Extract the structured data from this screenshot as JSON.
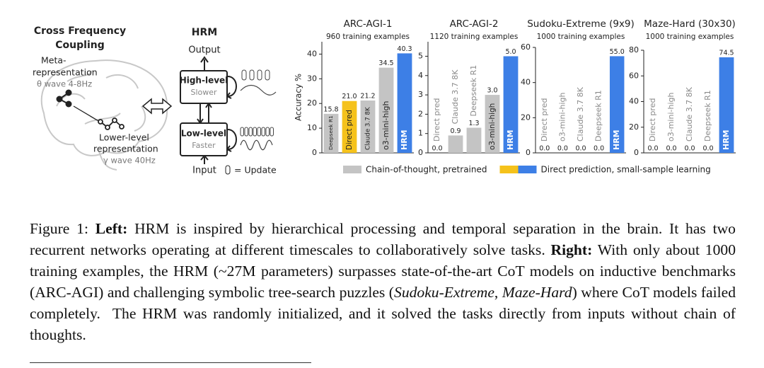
{
  "diagram": {
    "left_title": [
      "Cross Frequency",
      "Coupling"
    ],
    "meta_label": [
      "Meta-",
      "representation"
    ],
    "theta": "θ wave 4-8Hz",
    "lower_label": [
      "Lower-level",
      "representation"
    ],
    "gamma": "γ wave 40Hz",
    "hrm_title": "HRM",
    "output": "Output",
    "high_level": "High-level",
    "slower": "Slower",
    "low_level": "Low-level",
    "faster": "Faster",
    "input": "Input",
    "update": "= Update"
  },
  "chart_data": [
    {
      "type": "bar",
      "title": "ARC-AGI-1",
      "subtitle": "960 training examples",
      "ylabel": "Accuracy %",
      "categories": [
        "Deepseek R1",
        "Direct pred",
        "Claude 3.7 8K",
        "o3-mini-high",
        "HRM"
      ],
      "values": [
        15.8,
        21.0,
        21.2,
        34.5,
        40.3
      ],
      "value_labels": [
        "15.8",
        "21.0",
        "21.2",
        "34.5",
        "40.3"
      ],
      "colors": [
        "#c4c4c4",
        "#f5c21b",
        "#c4c4c4",
        "#c4c4c4",
        "#3d7fe6"
      ],
      "ylim": [
        0,
        45
      ],
      "yticks": [
        0,
        10,
        20,
        30,
        40
      ]
    },
    {
      "type": "bar",
      "title": "ARC-AGI-2",
      "subtitle": "1120 training examples",
      "categories": [
        "Direct pred",
        "Claude 3.7 8K",
        "Deepseek R1",
        "o3-mini-high",
        "HRM"
      ],
      "values": [
        0.0,
        0.9,
        1.3,
        3.0,
        5.0
      ],
      "value_labels": [
        "0.0",
        "0.9",
        "1.3",
        "3.0",
        "5.0"
      ],
      "colors": [
        "#f5c21b",
        "#c4c4c4",
        "#c4c4c4",
        "#c4c4c4",
        "#3d7fe6"
      ],
      "ylim": [
        0,
        5.75
      ],
      "yticks": [
        0,
        1,
        2,
        3,
        4,
        5
      ]
    },
    {
      "type": "bar",
      "title": "Sudoku-Extreme (9x9)",
      "subtitle": "1000 training examples",
      "categories": [
        "Direct pred",
        "o3-mini-high",
        "Claude 3.7 8K",
        "Deepseek R1",
        "HRM"
      ],
      "values": [
        0.0,
        0.0,
        0.0,
        0.0,
        55.0
      ],
      "value_labels": [
        "0.0",
        "0.0",
        "0.0",
        "0.0",
        "55.0"
      ],
      "colors": [
        "#f5c21b",
        "#c4c4c4",
        "#c4c4c4",
        "#c4c4c4",
        "#3d7fe6"
      ],
      "ylim": [
        0,
        60
      ],
      "yticks": [
        0,
        20,
        40,
        60
      ]
    },
    {
      "type": "bar",
      "title": "Maze-Hard (30x30)",
      "subtitle": "1000 training examples",
      "categories": [
        "Direct pred",
        "o3-mini-high",
        "Claude 3.7 8K",
        "Deepseek R1",
        "HRM"
      ],
      "values": [
        0.0,
        0.0,
        0.0,
        0.0,
        74.5
      ],
      "value_labels": [
        "0.0",
        "0.0",
        "0.0",
        "0.0",
        "74.5"
      ],
      "colors": [
        "#f5c21b",
        "#c4c4c4",
        "#c4c4c4",
        "#c4c4c4",
        "#3d7fe6"
      ],
      "ylim": [
        0,
        80
      ],
      "yticks": [
        0,
        20,
        40,
        60,
        80
      ]
    }
  ],
  "legend": [
    {
      "label": "Chain-of-thought, pretrained",
      "colors": [
        "#c4c4c4"
      ]
    },
    {
      "label": "Direct prediction, small-sample learning",
      "colors": [
        "#f5c21b",
        "#3d7fe6"
      ]
    }
  ],
  "caption": [
    {
      "text": "Figure 1: ",
      "style": "normal"
    },
    {
      "text": "Left:",
      "style": "bold"
    },
    {
      "text": " HRM is inspired by hierarchical processing and temporal separation in the brain. It has two recurrent networks operating at different timescales to collaboratively solve tasks. ",
      "style": "normal"
    },
    {
      "text": "Right:",
      "style": "bold"
    },
    {
      "text": " With only about 1000 training examples, the HRM (~27M parameters) surpasses state-of-the-art CoT models on inductive benchmarks (ARC-AGI) and challenging symbolic tree-search puzzles (",
      "style": "normal"
    },
    {
      "text": "Sudoku-Extreme",
      "style": "italic"
    },
    {
      "text": ", ",
      "style": "normal"
    },
    {
      "text": "Maze-Hard",
      "style": "italic"
    },
    {
      "text": ") where CoT models failed completely.  The HRM was randomly initialized, and it solved the tasks directly from inputs without chain of thoughts.",
      "style": "normal"
    }
  ]
}
